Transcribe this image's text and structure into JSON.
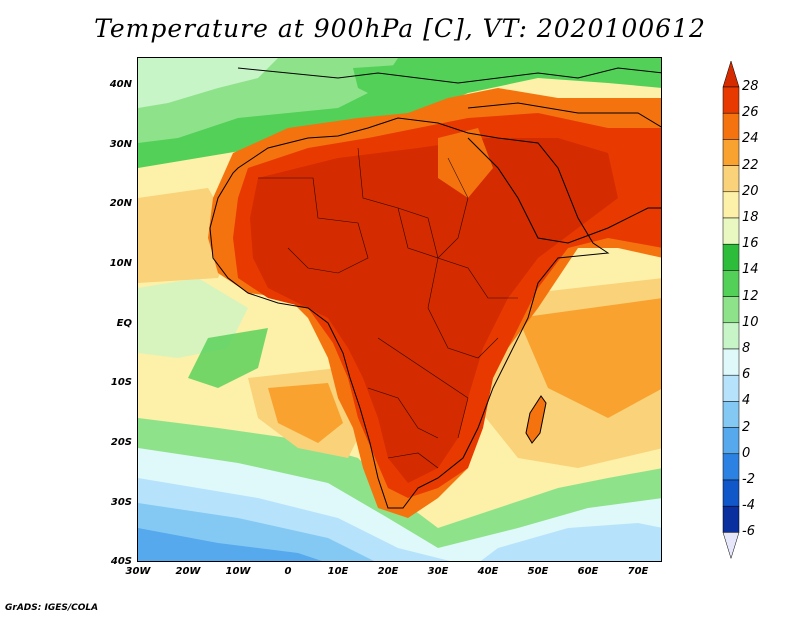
{
  "title": "Temperature at 900hPa [C], VT: 2020100612",
  "credit": "GrADS: IGES/COLA",
  "map": {
    "lon_range": [
      -30,
      75
    ],
    "lat_range": [
      -40,
      45
    ],
    "lat_ticks": [
      "40N",
      "30N",
      "20N",
      "10N",
      "EQ",
      "10S",
      "20S",
      "30S",
      "40S"
    ],
    "lon_ticks": [
      "30W",
      "20W",
      "10W",
      "0",
      "10E",
      "20E",
      "30E",
      "40E",
      "50E",
      "60E",
      "70E"
    ]
  },
  "colorbar": {
    "levels": [
      "28",
      "26",
      "24",
      "22",
      "20",
      "18",
      "16",
      "14",
      "12",
      "10",
      "8",
      "6",
      "4",
      "2",
      "0",
      "-2",
      "-4",
      "-6"
    ],
    "colors": [
      "#d42b00",
      "#e83a00",
      "#f5730f",
      "#f9a22f",
      "#f9d27a",
      "#fdf0a8",
      "#e8f8c0",
      "#2ebd3a",
      "#52d058",
      "#8ee38a",
      "#c8f5c8",
      "#dff9fb",
      "#b6e3fb",
      "#84c9f3",
      "#56a9ec",
      "#2c82e2",
      "#1057c9",
      "#0a2f9e",
      "#061a6e"
    ]
  },
  "chart_data": {
    "type": "heatmap",
    "title": "Temperature at 900hPa [C], VT: 2020100612",
    "variable": "Temperature at 900hPa",
    "unit": "C",
    "valid_time": "2020100612",
    "region": "Africa",
    "x_range": [
      -30,
      75
    ],
    "y_range": [
      -40,
      45
    ],
    "color_levels": [
      -6,
      -4,
      -2,
      0,
      2,
      4,
      6,
      8,
      10,
      12,
      14,
      16,
      18,
      20,
      22,
      24,
      26,
      28
    ]
  }
}
